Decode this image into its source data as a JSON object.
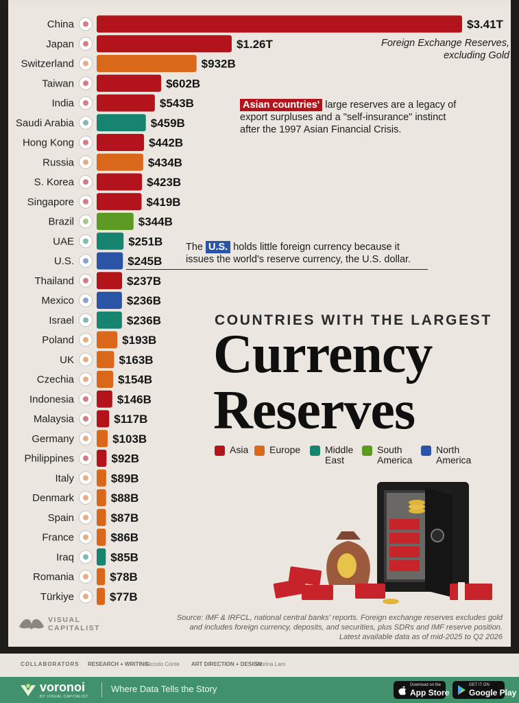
{
  "chart_data": {
    "type": "bar",
    "orientation": "horizontal",
    "unit": "USD",
    "annotation_top": [
      "Foreign Exchange Reserves,",
      "excluding Gold"
    ],
    "rows": [
      {
        "country": "China",
        "value": 3410,
        "label": "$3.41T",
        "region": "Asia"
      },
      {
        "country": "Japan",
        "value": 1260,
        "label": "$1.26T",
        "region": "Asia"
      },
      {
        "country": "Switzerland",
        "value": 932,
        "label": "$932B",
        "region": "Europe"
      },
      {
        "country": "Taiwan",
        "value": 602,
        "label": "$602B",
        "region": "Asia"
      },
      {
        "country": "India",
        "value": 543,
        "label": "$543B",
        "region": "Asia"
      },
      {
        "country": "Saudi Arabia",
        "value": 459,
        "label": "$459B",
        "region": "Middle East"
      },
      {
        "country": "Hong Kong",
        "value": 442,
        "label": "$442B",
        "region": "Asia"
      },
      {
        "country": "Russia",
        "value": 434,
        "label": "$434B",
        "region": "Europe"
      },
      {
        "country": "S. Korea",
        "value": 423,
        "label": "$423B",
        "region": "Asia"
      },
      {
        "country": "Singapore",
        "value": 419,
        "label": "$419B",
        "region": "Asia"
      },
      {
        "country": "Brazil",
        "value": 344,
        "label": "$344B",
        "region": "South America"
      },
      {
        "country": "UAE",
        "value": 251,
        "label": "$251B",
        "region": "Middle East"
      },
      {
        "country": "U.S.",
        "value": 245,
        "label": "$245B",
        "region": "North America"
      },
      {
        "country": "Thailand",
        "value": 237,
        "label": "$237B",
        "region": "Asia"
      },
      {
        "country": "Mexico",
        "value": 236,
        "label": "$236B",
        "region": "North America"
      },
      {
        "country": "Israel",
        "value": 236,
        "label": "$236B",
        "region": "Middle East"
      },
      {
        "country": "Poland",
        "value": 193,
        "label": "$193B",
        "region": "Europe"
      },
      {
        "country": "UK",
        "value": 163,
        "label": "$163B",
        "region": "Europe"
      },
      {
        "country": "Czechia",
        "value": 154,
        "label": "$154B",
        "region": "Europe"
      },
      {
        "country": "Indonesia",
        "value": 146,
        "label": "$146B",
        "region": "Asia"
      },
      {
        "country": "Malaysia",
        "value": 117,
        "label": "$117B",
        "region": "Asia"
      },
      {
        "country": "Germany",
        "value": 103,
        "label": "$103B",
        "region": "Europe"
      },
      {
        "country": "Philippines",
        "value": 92,
        "label": "$92B",
        "region": "Asia"
      },
      {
        "country": "Italy",
        "value": 89,
        "label": "$89B",
        "region": "Europe"
      },
      {
        "country": "Denmark",
        "value": 88,
        "label": "$88B",
        "region": "Europe"
      },
      {
        "country": "Spain",
        "value": 87,
        "label": "$87B",
        "region": "Europe"
      },
      {
        "country": "France",
        "value": 86,
        "label": "$86B",
        "region": "Europe"
      },
      {
        "country": "Iraq",
        "value": 85,
        "label": "$85B",
        "region": "Middle East"
      },
      {
        "country": "Romania",
        "value": 78,
        "label": "$78B",
        "region": "Europe"
      },
      {
        "country": "Türkiye",
        "value": 77,
        "label": "$77B",
        "region": "Europe"
      }
    ],
    "region_colors": {
      "Asia": "#b3131b",
      "Europe": "#d9681a",
      "Middle East": "#17846f",
      "South America": "#5d9a24",
      "North America": "#2a55a6"
    }
  },
  "annotations": {
    "asia_highlight": "Asian countries'",
    "asia_lines": [
      " large reserves are a legacy of",
      "export surpluses and a \"self-insurance\" instinct",
      "after the 1997 Asian Financial Crisis."
    ],
    "us_pre": "The ",
    "us_highlight": "U.S.",
    "us_lines": [
      " holds little foreign currency because it",
      "issues the world's reserve currency, the U.S. dollar."
    ]
  },
  "title": {
    "subtitle": "COUNTRIES WITH THE LARGEST",
    "line1": "Currency",
    "line2": "Reserves"
  },
  "legend": [
    {
      "label": "Asia",
      "lines": [
        "Asia"
      ],
      "color": "#b3131b"
    },
    {
      "label": "Europe",
      "lines": [
        "Europe"
      ],
      "color": "#d9681a"
    },
    {
      "label": "Middle East",
      "lines": [
        "Middle",
        "East"
      ],
      "color": "#17846f"
    },
    {
      "label": "South America",
      "lines": [
        "South",
        "America"
      ],
      "color": "#5d9a24"
    },
    {
      "label": "North America",
      "lines": [
        "North",
        "America"
      ],
      "color": "#2a55a6"
    }
  ],
  "source": [
    "Source: IMF & IRFCL, national central banks' reports. Foreign exchange reserves excludes gold",
    "and includes foreign currency, deposits, and securities, plus SDRs and IMF reserve position.",
    "Latest available data as of mid-2025 to Q2 2026"
  ],
  "brand": {
    "line1": "VISUAL",
    "line2": "CAPITALIST"
  },
  "collaborators": {
    "heading": "COLLABORATORS",
    "research_label": "RESEARCH + WRITING",
    "research_name": "Niccolo Conte",
    "art_label": "ART DIRECTION + DESIGN",
    "art_name": "Sabrina Lam"
  },
  "footer": {
    "logo": "voronoi",
    "logo_sub": "BY VISUAL CAPITALIST",
    "tagline": "Where Data Tells the Story",
    "appstore_small": "Download on the",
    "appstore_big": "App Store",
    "googleplay_small": "GET IT ON",
    "googleplay_big": "Google Play"
  }
}
